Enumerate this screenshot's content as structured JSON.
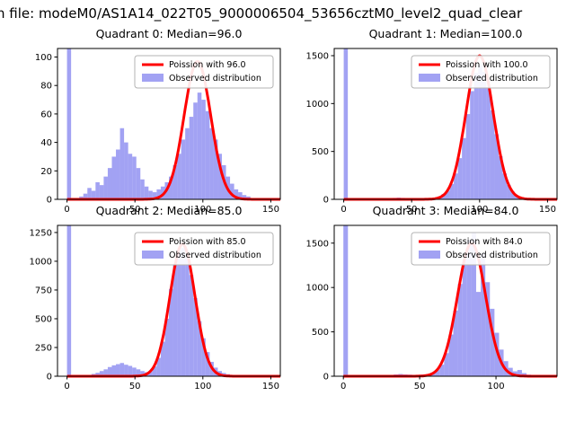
{
  "figure": {
    "title": "n file: modeM0/AS1A14_022T05_9000006504_53656cztM0_level2_quad_clear",
    "background": "#ffffff"
  },
  "colors": {
    "bar": "#7b7bee",
    "line": "#ff0000",
    "axis": "#000000",
    "legend_border": "#b3b3b3"
  },
  "chart_data": [
    {
      "type": "bar",
      "title": "Quadrant 0: Median=96.0",
      "legend": [
        "Poission with 96.0",
        "Observed distribution"
      ],
      "legend_position": "upper right",
      "grid": false,
      "xlim": [
        -7,
        157
      ],
      "ylim": [
        0,
        106
      ],
      "xticks": [
        0,
        50,
        100,
        150
      ],
      "yticks": [
        0,
        20,
        40,
        60,
        80,
        100
      ],
      "bin_width": 3,
      "bars": [
        [
          0,
          106
        ],
        [
          9,
          2
        ],
        [
          12,
          4
        ],
        [
          15,
          8
        ],
        [
          18,
          6
        ],
        [
          21,
          12
        ],
        [
          24,
          10
        ],
        [
          27,
          16
        ],
        [
          30,
          22
        ],
        [
          33,
          30
        ],
        [
          36,
          35
        ],
        [
          39,
          50
        ],
        [
          42,
          40
        ],
        [
          45,
          32
        ],
        [
          48,
          30
        ],
        [
          51,
          22
        ],
        [
          54,
          14
        ],
        [
          57,
          9
        ],
        [
          60,
          6
        ],
        [
          63,
          5
        ],
        [
          66,
          7
        ],
        [
          69,
          9
        ],
        [
          72,
          12
        ],
        [
          75,
          16
        ],
        [
          78,
          24
        ],
        [
          81,
          32
        ],
        [
          84,
          42
        ],
        [
          87,
          50
        ],
        [
          90,
          58
        ],
        [
          93,
          68
        ],
        [
          96,
          75
        ],
        [
          99,
          70
        ],
        [
          102,
          62
        ],
        [
          105,
          50
        ],
        [
          108,
          42
        ],
        [
          111,
          32
        ],
        [
          114,
          24
        ],
        [
          117,
          16
        ],
        [
          120,
          11
        ],
        [
          123,
          7
        ],
        [
          126,
          5
        ],
        [
          129,
          3
        ],
        [
          132,
          2
        ]
      ],
      "poisson": {
        "mean": 96,
        "amplitude": 97
      }
    },
    {
      "type": "bar",
      "title": "Quadrant 1: Median=100.0",
      "legend": [
        "Poission with 100.0",
        "Observed distribution"
      ],
      "legend_position": "upper right",
      "grid": false,
      "xlim": [
        -7,
        157
      ],
      "ylim": [
        0,
        1575
      ],
      "xticks": [
        0,
        50,
        100,
        150
      ],
      "yticks": [
        0,
        500,
        1000,
        1500
      ],
      "bin_width": 3,
      "bars": [
        [
          0,
          1575
        ],
        [
          30,
          10
        ],
        [
          33,
          12
        ],
        [
          36,
          15
        ],
        [
          39,
          18
        ],
        [
          42,
          15
        ],
        [
          45,
          12
        ],
        [
          48,
          10
        ],
        [
          51,
          8
        ],
        [
          54,
          8
        ],
        [
          57,
          8
        ],
        [
          60,
          10
        ],
        [
          63,
          12
        ],
        [
          66,
          18
        ],
        [
          69,
          30
        ],
        [
          72,
          55
        ],
        [
          75,
          90
        ],
        [
          78,
          160
        ],
        [
          81,
          270
        ],
        [
          84,
          430
        ],
        [
          87,
          640
        ],
        [
          90,
          890
        ],
        [
          93,
          1130
        ],
        [
          96,
          1320
        ],
        [
          99,
          1400
        ],
        [
          102,
          1330
        ],
        [
          105,
          1160
        ],
        [
          108,
          930
        ],
        [
          111,
          680
        ],
        [
          114,
          450
        ],
        [
          117,
          270
        ],
        [
          120,
          150
        ],
        [
          123,
          80
        ],
        [
          126,
          40
        ],
        [
          129,
          20
        ],
        [
          132,
          10
        ]
      ],
      "poisson": {
        "mean": 100,
        "amplitude": 1500
      }
    },
    {
      "type": "bar",
      "title": "Quadrant 2: Median=85.0",
      "legend": [
        "Poission with 85.0",
        "Observed distribution"
      ],
      "legend_position": "upper right",
      "grid": false,
      "xlim": [
        -7,
        157
      ],
      "ylim": [
        0,
        1312
      ],
      "xticks": [
        0,
        50,
        100,
        150
      ],
      "yticks": [
        0,
        250,
        500,
        750,
        1000,
        1250
      ],
      "bin_width": 3,
      "bars": [
        [
          0,
          1312
        ],
        [
          18,
          20
        ],
        [
          21,
          30
        ],
        [
          24,
          45
        ],
        [
          27,
          60
        ],
        [
          30,
          80
        ],
        [
          33,
          95
        ],
        [
          36,
          105
        ],
        [
          39,
          115
        ],
        [
          42,
          100
        ],
        [
          45,
          90
        ],
        [
          48,
          75
        ],
        [
          51,
          60
        ],
        [
          54,
          45
        ],
        [
          57,
          35
        ],
        [
          60,
          45
        ],
        [
          63,
          85
        ],
        [
          66,
          160
        ],
        [
          69,
          300
        ],
        [
          72,
          500
        ],
        [
          75,
          760
        ],
        [
          78,
          970
        ],
        [
          81,
          1090
        ],
        [
          84,
          1115
        ],
        [
          87,
          1040
        ],
        [
          90,
          880
        ],
        [
          93,
          680
        ],
        [
          96,
          480
        ],
        [
          99,
          330
        ],
        [
          102,
          210
        ],
        [
          105,
          125
        ],
        [
          108,
          75
        ],
        [
          111,
          45
        ],
        [
          114,
          28
        ],
        [
          117,
          18
        ],
        [
          120,
          12
        ],
        [
          123,
          8
        ],
        [
          126,
          5
        ],
        [
          129,
          4
        ],
        [
          135,
          10
        ]
      ],
      "poisson": {
        "mean": 85,
        "amplitude": 1150
      }
    },
    {
      "type": "bar",
      "title": "Quadrant 3: Median=84.0",
      "legend": [
        "Poission with 84.0",
        "Observed distribution"
      ],
      "legend_position": "upper right",
      "grid": false,
      "xlim": [
        -6,
        140
      ],
      "ylim": [
        0,
        1700
      ],
      "xticks": [
        0,
        50,
        100
      ],
      "yticks": [
        0,
        500,
        1000,
        1500
      ],
      "bin_width": 3,
      "bars": [
        [
          0,
          1700
        ],
        [
          30,
          15
        ],
        [
          33,
          20
        ],
        [
          36,
          25
        ],
        [
          39,
          20
        ],
        [
          42,
          18
        ],
        [
          45,
          15
        ],
        [
          48,
          15
        ],
        [
          51,
          20
        ],
        [
          54,
          25
        ],
        [
          57,
          40
        ],
        [
          60,
          70
        ],
        [
          63,
          130
        ],
        [
          66,
          260
        ],
        [
          69,
          470
        ],
        [
          72,
          740
        ],
        [
          75,
          1040
        ],
        [
          78,
          1320
        ],
        [
          81,
          1540
        ],
        [
          84,
          1620
        ],
        [
          87,
          950
        ],
        [
          90,
          1380
        ],
        [
          93,
          1060
        ],
        [
          96,
          760
        ],
        [
          99,
          490
        ],
        [
          102,
          300
        ],
        [
          105,
          170
        ],
        [
          108,
          95
        ],
        [
          111,
          55
        ],
        [
          114,
          70
        ],
        [
          117,
          35
        ],
        [
          120,
          18
        ],
        [
          123,
          10
        ],
        [
          126,
          6
        ]
      ],
      "poisson": {
        "mean": 84,
        "amplitude": 1500
      }
    }
  ]
}
